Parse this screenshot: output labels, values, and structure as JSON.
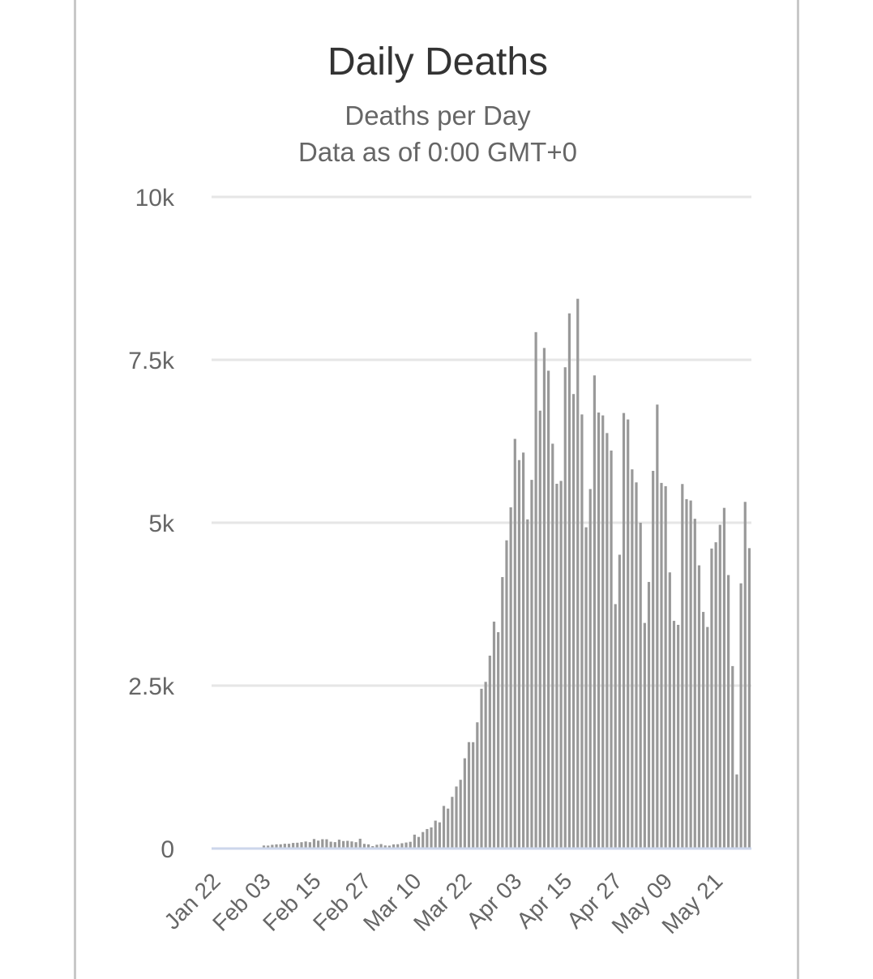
{
  "chart_data": {
    "type": "bar",
    "title": "Daily Deaths",
    "subtitle": "Deaths per Day",
    "subtitle2": "Data as of 0:00 GMT+0",
    "xlabel": "",
    "ylabel": "",
    "ylim": [
      0,
      10000
    ],
    "yticks": [
      {
        "value": 0,
        "label": "0"
      },
      {
        "value": 2500,
        "label": "2.5k"
      },
      {
        "value": 5000,
        "label": "5k"
      },
      {
        "value": 7500,
        "label": "7.5k"
      },
      {
        "value": 10000,
        "label": "10k"
      }
    ],
    "xticks": [
      {
        "index": 0,
        "label": "Jan 22"
      },
      {
        "index": 12,
        "label": "Feb 03"
      },
      {
        "index": 24,
        "label": "Feb 15"
      },
      {
        "index": 36,
        "label": "Feb 27"
      },
      {
        "index": 48,
        "label": "Mar 10"
      },
      {
        "index": 60,
        "label": "Mar 22"
      },
      {
        "index": 72,
        "label": "Apr 03"
      },
      {
        "index": 84,
        "label": "Apr 15"
      },
      {
        "index": 96,
        "label": "Apr 27"
      },
      {
        "index": 108,
        "label": "May 09"
      },
      {
        "index": 120,
        "label": "May 21"
      }
    ],
    "grid": true,
    "legend": false,
    "bar_color": "#999999",
    "start_date": "2020-01-22",
    "values": [
      0,
      0,
      0,
      0,
      0,
      0,
      0,
      0,
      0,
      0,
      0,
      0,
      46,
      45,
      57,
      64,
      65,
      73,
      73,
      86,
      89,
      97,
      108,
      97,
      146,
      121,
      143,
      142,
      105,
      98,
      136,
      115,
      118,
      109,
      97,
      150,
      71,
      64,
      37,
      58,
      68,
      47,
      44,
      64,
      66,
      81,
      92,
      103,
      213,
      178,
      253,
      299,
      324,
      428,
      402,
      654,
      613,
      793,
      952,
      1055,
      1385,
      1633,
      1632,
      1937,
      2452,
      2558,
      2960,
      3482,
      3320,
      4166,
      4730,
      5236,
      6287,
      5961,
      6077,
      5051,
      5658,
      7925,
      6720,
      7682,
      7333,
      6213,
      5598,
      5642,
      7386,
      8213,
      6975,
      8437,
      6662,
      4930,
      5517,
      7261,
      6691,
      6647,
      6376,
      6108,
      3751,
      4509,
      6684,
      6585,
      5819,
      5619,
      5000,
      3462,
      4091,
      5796,
      6813,
      5611,
      5561,
      4238,
      3494,
      3433,
      5594,
      5362,
      5341,
      5061,
      4346,
      3631,
      3400,
      4604,
      4700,
      4968,
      5228,
      4197,
      2800,
      1137,
      4070,
      5320,
      4610
    ]
  }
}
